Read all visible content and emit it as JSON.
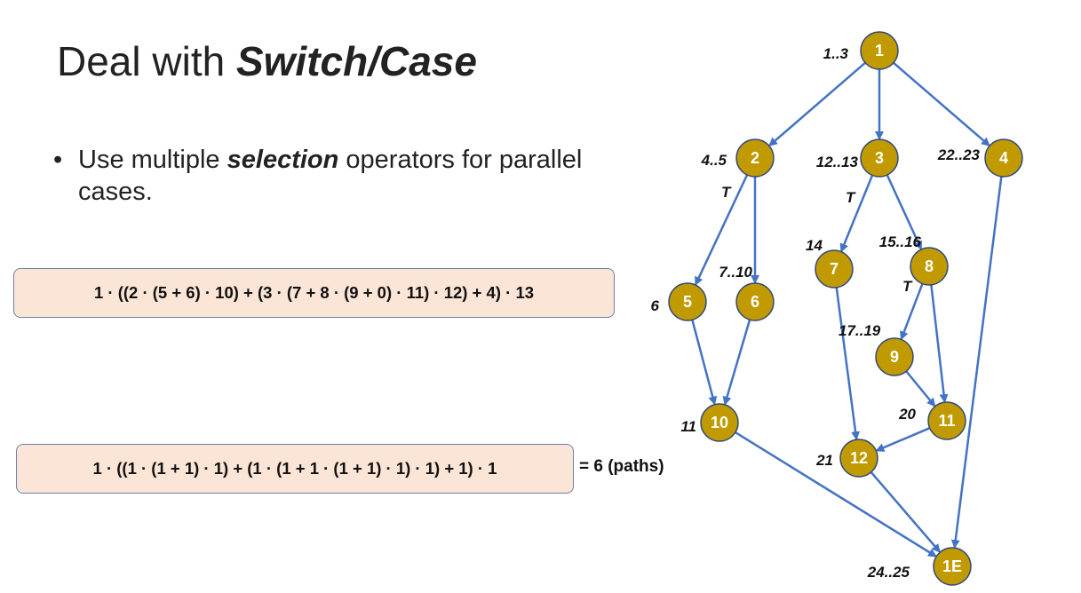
{
  "title": {
    "prefix": "Deal with ",
    "emphasis": "Switch/Case"
  },
  "bullet": {
    "symbol": "•",
    "before": "Use multiple ",
    "emphasis": "selection",
    "after": " operators for parallel cases."
  },
  "formula1": "1 · ((2 · (5 + 6) · 10) + (3 · (7 + 8 · (9 + 0) · 11) · 12) + 4) · 13",
  "formula2": "1 · ((1 · (1 + 1) · 1) + (1 · (1 + 1 · (1 + 1) · 1) · 1) + 1) · 1",
  "result": "= 6 (paths)",
  "graph": {
    "nodes": [
      {
        "id": "1",
        "label": "1",
        "lines": "1..3"
      },
      {
        "id": "2",
        "label": "2",
        "lines": "4..5"
      },
      {
        "id": "3",
        "label": "3",
        "lines": "12..13"
      },
      {
        "id": "4",
        "label": "4",
        "lines": "22..23"
      },
      {
        "id": "5",
        "label": "5",
        "lines": "6"
      },
      {
        "id": "6",
        "label": "6",
        "lines": "7..10"
      },
      {
        "id": "7",
        "label": "7",
        "lines": "14"
      },
      {
        "id": "8",
        "label": "8",
        "lines": "15..16"
      },
      {
        "id": "9",
        "label": "9",
        "lines": "17..19"
      },
      {
        "id": "10",
        "label": "10",
        "lines": "11"
      },
      {
        "id": "11",
        "label": "11",
        "lines": "20"
      },
      {
        "id": "12",
        "label": "12",
        "lines": "21"
      },
      {
        "id": "1E",
        "label": "1E",
        "lines": "24..25"
      }
    ],
    "edges": [
      {
        "from": "1",
        "to": "2",
        "label": ""
      },
      {
        "from": "1",
        "to": "3",
        "label": ""
      },
      {
        "from": "1",
        "to": "4",
        "label": ""
      },
      {
        "from": "2",
        "to": "5",
        "label": "T"
      },
      {
        "from": "2",
        "to": "6",
        "label": ""
      },
      {
        "from": "3",
        "to": "7",
        "label": "T"
      },
      {
        "from": "3",
        "to": "8",
        "label": ""
      },
      {
        "from": "8",
        "to": "9",
        "label": "T"
      },
      {
        "from": "8",
        "to": "11",
        "label": ""
      },
      {
        "from": "9",
        "to": "11",
        "label": ""
      },
      {
        "from": "5",
        "to": "10",
        "label": ""
      },
      {
        "from": "6",
        "to": "10",
        "label": ""
      },
      {
        "from": "7",
        "to": "12",
        "label": ""
      },
      {
        "from": "11",
        "to": "12",
        "label": ""
      },
      {
        "from": "10",
        "to": "1E",
        "label": ""
      },
      {
        "from": "12",
        "to": "1E",
        "label": ""
      },
      {
        "from": "4",
        "to": "1E",
        "label": ""
      }
    ]
  }
}
